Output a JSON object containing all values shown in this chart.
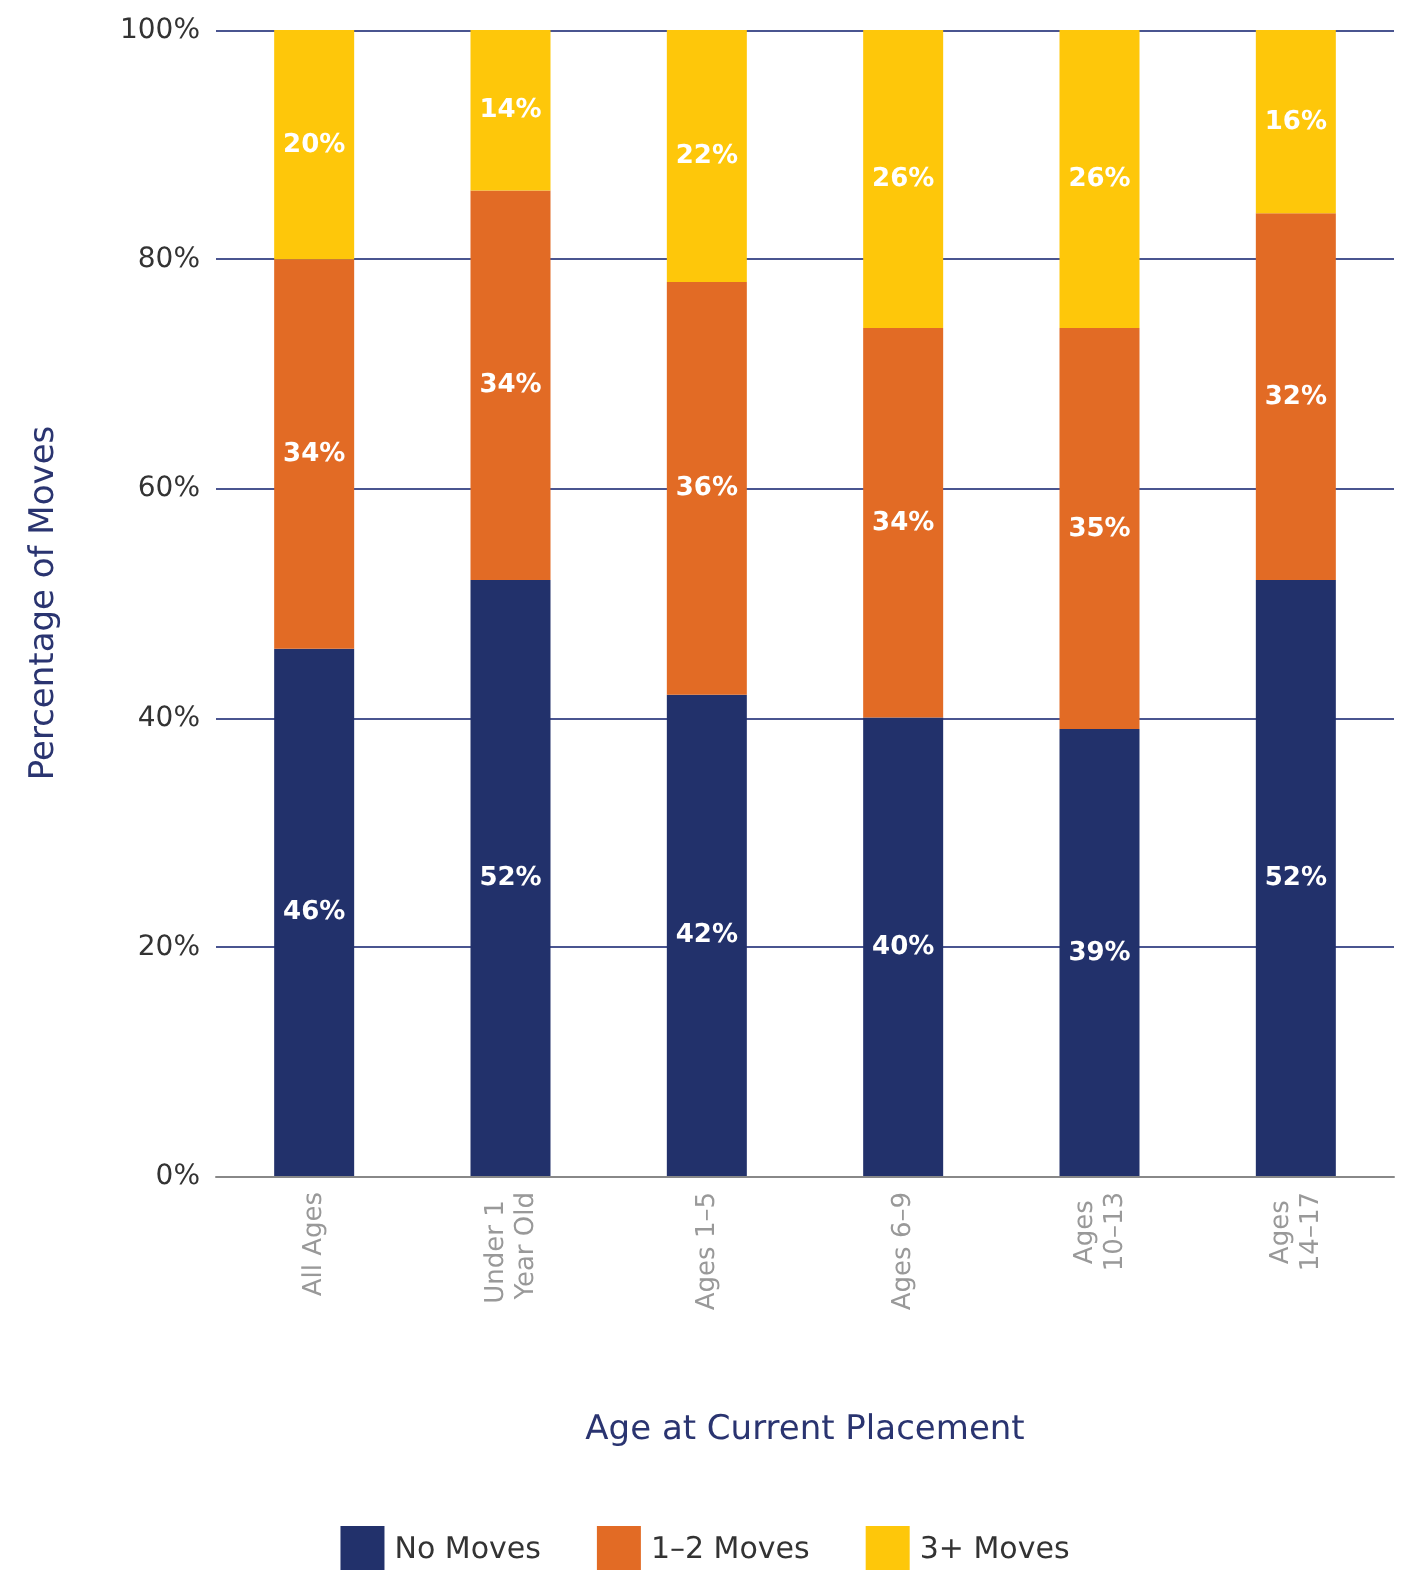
{
  "chart_data": {
    "type": "bar",
    "stacked": true,
    "xlabel": "Age at Current Placement",
    "ylabel": "Percentage of Moves",
    "categories": [
      "All Ages",
      "Under 1 Year Old",
      "Ages 1–5",
      "Ages 6–9",
      "Ages 10–13",
      "Ages 14–17"
    ],
    "series": [
      {
        "name": "No Moves",
        "color": "#22316b",
        "values": [
          46,
          52,
          42,
          40,
          39,
          52
        ],
        "value_labels": [
          "46%",
          "52%",
          "42%",
          "40%",
          "39%",
          "52%"
        ]
      },
      {
        "name": "1–2 Moves",
        "color": "#e26b25",
        "values": [
          34,
          34,
          36,
          34,
          35,
          32
        ],
        "value_labels": [
          "34%",
          "34%",
          "36%",
          "34%",
          "35%",
          "32%"
        ]
      },
      {
        "name": "3+ Moves",
        "color": "#fec70a",
        "values": [
          20,
          14,
          22,
          26,
          26,
          16
        ],
        "value_labels": [
          "20%",
          "14%",
          "22%",
          "26%",
          "26%",
          "16%"
        ]
      }
    ],
    "ylim": [
      0,
      100
    ],
    "yticks": [
      {
        "value": 0,
        "label": "0%"
      },
      {
        "value": 20,
        "label": "20%"
      },
      {
        "value": 40,
        "label": "40%"
      },
      {
        "value": 60,
        "label": "60%"
      },
      {
        "value": 80,
        "label": "80%"
      },
      {
        "value": 100,
        "label": "100%"
      }
    ],
    "grid": "y",
    "legend": "bottom"
  }
}
